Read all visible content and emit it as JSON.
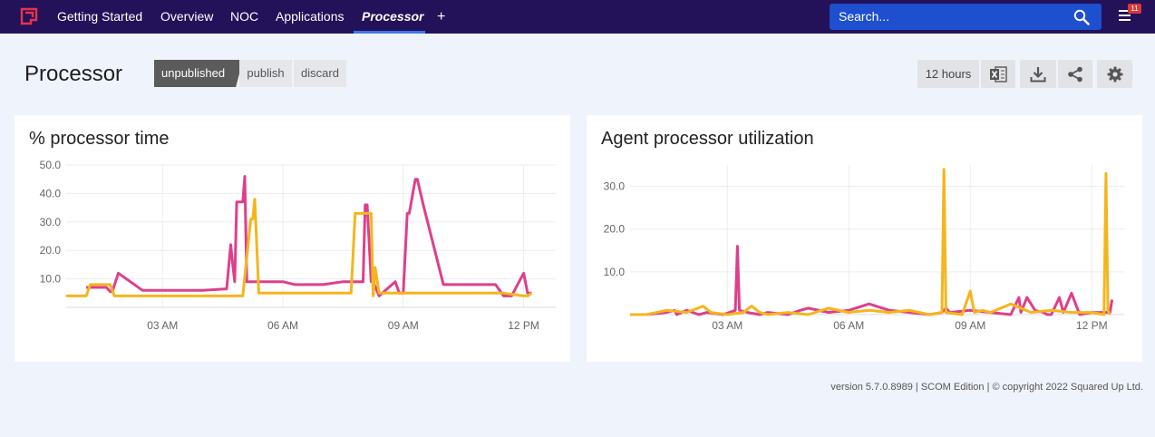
{
  "nav": {
    "items": [
      {
        "label": "Getting Started",
        "name": "nav-getting-started"
      },
      {
        "label": "Overview",
        "name": "nav-overview"
      },
      {
        "label": "NOC",
        "name": "nav-noc"
      },
      {
        "label": "Applications",
        "name": "nav-applications"
      },
      {
        "label": "Processor",
        "name": "nav-processor",
        "active": true
      }
    ],
    "add_label": "+",
    "search_placeholder": "Search...",
    "notification_count": "11"
  },
  "page": {
    "title": "Processor",
    "status_label": "unpublished",
    "publish_label": "publish",
    "discard_label": "discard",
    "timeframe_label": "12 hours"
  },
  "icons": [
    "logo-icon",
    "search-icon",
    "menu-icon",
    "excel-icon",
    "download-icon",
    "share-icon",
    "gear-icon"
  ],
  "colors": {
    "nav_bg": "#231259",
    "search_bg": "#1d4fcf",
    "series_pink": "#de3f8a",
    "series_yellow": "#f5b51c"
  },
  "chart_data": [
    {
      "type": "line",
      "title": "% processor time",
      "xlabel": "",
      "ylabel": "",
      "ylim": [
        0,
        50
      ],
      "yticks": [
        "10.0",
        "20.0",
        "30.0",
        "40.0",
        "50.0"
      ],
      "ytick_values": [
        10,
        20,
        30,
        40,
        50
      ],
      "xlim": [
        0.6,
        12.8
      ],
      "xticks": [
        "03 AM",
        "06 AM",
        "09 AM",
        "12 PM"
      ],
      "xtick_values": [
        3,
        6,
        9,
        12
      ],
      "grid": true,
      "series": [
        {
          "name": "pink",
          "color": "#de3f8a",
          "x": [
            1.1,
            1.6,
            1.7,
            1.75,
            1.9,
            2.5,
            2.8,
            3.0,
            3.5,
            3.9,
            4.0,
            4.6,
            4.7,
            4.75,
            4.8,
            4.85,
            5.0,
            5.05,
            5.1,
            5.3,
            6.0,
            6.3,
            7.0,
            7.5,
            7.7,
            7.9,
            8.0,
            8.05,
            8.1,
            8.2,
            8.25,
            8.4,
            8.8,
            8.9,
            9.0,
            9.1,
            9.15,
            9.3,
            9.35,
            9.5,
            10.0,
            10.5,
            10.8,
            11.2,
            11.3,
            11.5,
            11.7,
            12.0,
            12.1,
            12.2
          ],
          "y": [
            7,
            7,
            5.5,
            5.5,
            12,
            6,
            6,
            6,
            6,
            6,
            6,
            6.5,
            22,
            15,
            9,
            37,
            37,
            46,
            9,
            9,
            9,
            8,
            8,
            9,
            9,
            9,
            9,
            36,
            36,
            9,
            9,
            4,
            9,
            5,
            5,
            33,
            33,
            45,
            45,
            36,
            8,
            8,
            8,
            8,
            8,
            4,
            4,
            12,
            5,
            5
          ]
        },
        {
          "name": "yellow",
          "color": "#f5b51c",
          "x": [
            0.6,
            1.1,
            1.2,
            1.3,
            1.6,
            1.7,
            1.8,
            2.5,
            3.0,
            3.5,
            4.5,
            4.7,
            4.8,
            5.0,
            5.2,
            5.25,
            5.3,
            5.4,
            6.0,
            6.5,
            7.0,
            7.5,
            7.7,
            7.8,
            8.2,
            8.25,
            8.3,
            8.4,
            9.0,
            9.5,
            10.0,
            10.5,
            11.0,
            11.5,
            12.0,
            12.1,
            12.2
          ],
          "y": [
            4,
            4,
            8,
            8,
            8,
            8,
            4,
            4,
            4,
            4,
            4,
            4,
            4,
            4,
            31,
            31,
            38,
            5,
            5,
            5,
            5,
            5,
            5,
            33,
            33,
            4,
            14,
            5,
            5,
            5,
            5,
            5,
            5,
            5,
            4,
            4,
            5
          ]
        }
      ]
    },
    {
      "type": "line",
      "title": "Agent processor utilization",
      "xlabel": "",
      "ylabel": "",
      "ylim": [
        0,
        35
      ],
      "yticks": [
        "10.0",
        "20.0",
        "30.0"
      ],
      "ytick_values": [
        10,
        20,
        30
      ],
      "xlim": [
        0.6,
        12.8
      ],
      "xticks": [
        "03 AM",
        "06 AM",
        "09 AM",
        "12 PM"
      ],
      "xtick_values": [
        3,
        6,
        9,
        12
      ],
      "grid": true,
      "series": [
        {
          "name": "pink",
          "color": "#de3f8a",
          "x": [
            0.6,
            1.0,
            1.5,
            1.7,
            1.75,
            2.0,
            2.3,
            2.5,
            2.9,
            3.2,
            3.25,
            3.3,
            3.5,
            3.8,
            4.0,
            4.5,
            4.8,
            5.0,
            5.5,
            6.0,
            6.5,
            7.0,
            7.5,
            8.0,
            8.3,
            8.4,
            8.5,
            9.0,
            9.5,
            10.0,
            10.2,
            10.25,
            10.4,
            10.6,
            10.8,
            10.9,
            11.0,
            11.2,
            11.3,
            11.5,
            11.7,
            12.0,
            12.3,
            12.45,
            12.5
          ],
          "y": [
            0,
            0,
            0.5,
            1,
            0,
            1,
            0,
            0.5,
            0,
            1,
            16,
            1,
            0.5,
            0,
            0.5,
            0,
            1,
            1.5,
            0.5,
            1,
            2.5,
            1,
            0.5,
            0,
            0.5,
            1.5,
            0.5,
            1,
            0.5,
            0,
            4,
            0.5,
            4,
            1,
            0.5,
            0,
            0,
            4,
            0.5,
            5,
            0,
            0.5,
            0.5,
            0.5,
            3.5
          ]
        },
        {
          "name": "yellow",
          "color": "#f5b51c",
          "x": [
            0.6,
            1.0,
            1.5,
            2.0,
            2.4,
            2.6,
            3.0,
            3.4,
            3.6,
            3.8,
            4.0,
            4.5,
            5.0,
            5.5,
            6.0,
            6.5,
            7.0,
            7.5,
            8.0,
            8.3,
            8.35,
            8.4,
            8.8,
            9.0,
            9.1,
            9.3,
            9.5,
            10.0,
            10.5,
            11.0,
            11.5,
            12.0,
            12.3,
            12.35,
            12.4,
            12.45
          ],
          "y": [
            0,
            0,
            1,
            0.5,
            2,
            0.5,
            0,
            0.5,
            2,
            0.5,
            0,
            0.5,
            0,
            1.5,
            0.5,
            1,
            0.5,
            1,
            0,
            0.5,
            34,
            0.5,
            0,
            5.5,
            0.5,
            1,
            0.5,
            2.5,
            0.5,
            1,
            0.5,
            0.5,
            0,
            33,
            1,
            0
          ]
        }
      ]
    }
  ],
  "footer": {
    "text": "version 5.7.0.8989 | SCOM Edition | © copyright 2022 Squared Up Ltd."
  }
}
